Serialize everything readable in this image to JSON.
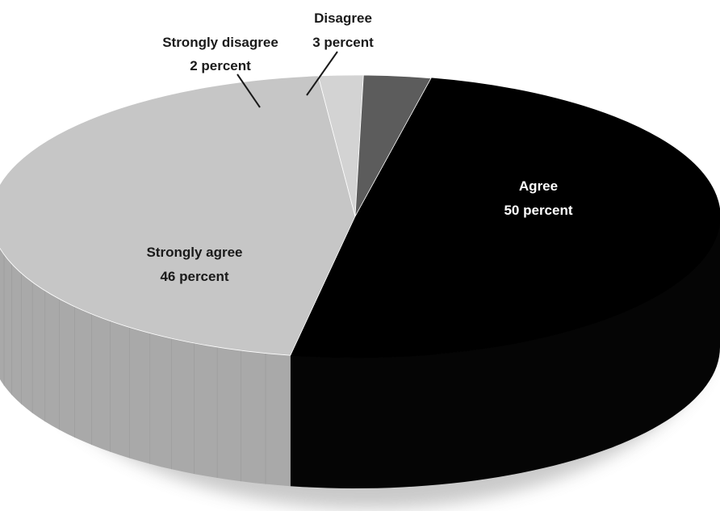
{
  "chart_data": {
    "type": "pie",
    "style": "3d-tilted",
    "slices": [
      {
        "label": "Agree",
        "value": 50,
        "value_label": "50 percent",
        "color": "#000000",
        "side_color": "#050505"
      },
      {
        "label": "Strongly agree",
        "value": 46,
        "value_label": "46 percent",
        "color": "#c6c6c6",
        "side_color": "#a9a9a9"
      },
      {
        "label": "Strongly disagree",
        "value": 2,
        "value_label": "2 percent",
        "color": "#d3d3d3",
        "side_color": "#b8b8b8"
      },
      {
        "label": "Disagree",
        "value": 3,
        "value_label": "3 percent",
        "color": "#5c5c5c",
        "side_color": "#444444"
      }
    ]
  }
}
